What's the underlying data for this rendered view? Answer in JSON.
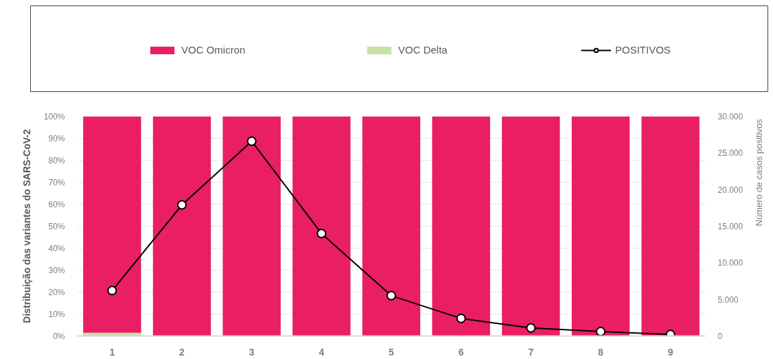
{
  "chart_data": {
    "type": "bar",
    "stacked": true,
    "categories": [
      "1",
      "2",
      "3",
      "4",
      "5",
      "6",
      "7",
      "8",
      "9"
    ],
    "series": [
      {
        "name": "VOC Delta",
        "color": "#c5e1a5",
        "values": [
          1.5,
          0,
          0,
          0,
          0,
          0,
          0,
          0,
          0
        ]
      },
      {
        "name": "VOC Omicron",
        "color": "#e91e63",
        "values": [
          98.5,
          100,
          100,
          100,
          100,
          100,
          100,
          100,
          100
        ]
      },
      {
        "name": "POSITIVOS",
        "type": "line",
        "axis": "y2",
        "color": "#000000",
        "values": [
          6200,
          17900,
          26600,
          14000,
          5500,
          2400,
          1100,
          600,
          200
        ]
      }
    ],
    "ylabel": "Distribuição das variantes do SARS-CoV-2",
    "y2label": "Número de casos positivos",
    "ylim": [
      0,
      100
    ],
    "yticks": [
      {
        "value": 0,
        "label": "0%"
      },
      {
        "value": 10,
        "label": "10%"
      },
      {
        "value": 20,
        "label": "20%"
      },
      {
        "value": 30,
        "label": "30%"
      },
      {
        "value": 40,
        "label": "40%"
      },
      {
        "value": 50,
        "label": "50%"
      },
      {
        "value": 60,
        "label": "60%"
      },
      {
        "value": 70,
        "label": "70%"
      },
      {
        "value": 80,
        "label": "80%"
      },
      {
        "value": 90,
        "label": "90%"
      },
      {
        "value": 100,
        "label": "100%"
      }
    ],
    "y2lim": [
      0,
      30000
    ],
    "y2ticks": [
      0,
      {
        "value": 5000,
        "label": "5.000"
      },
      {
        "value": 10000,
        "label": "10.000"
      },
      {
        "value": 15000,
        "label": "15.000"
      },
      {
        "value": 20000,
        "label": "20.000"
      },
      {
        "value": 25000,
        "label": "25.000"
      },
      {
        "value": 30000,
        "label": "30.000"
      }
    ],
    "grid": "y",
    "legend": "top",
    "marker": "circle"
  }
}
